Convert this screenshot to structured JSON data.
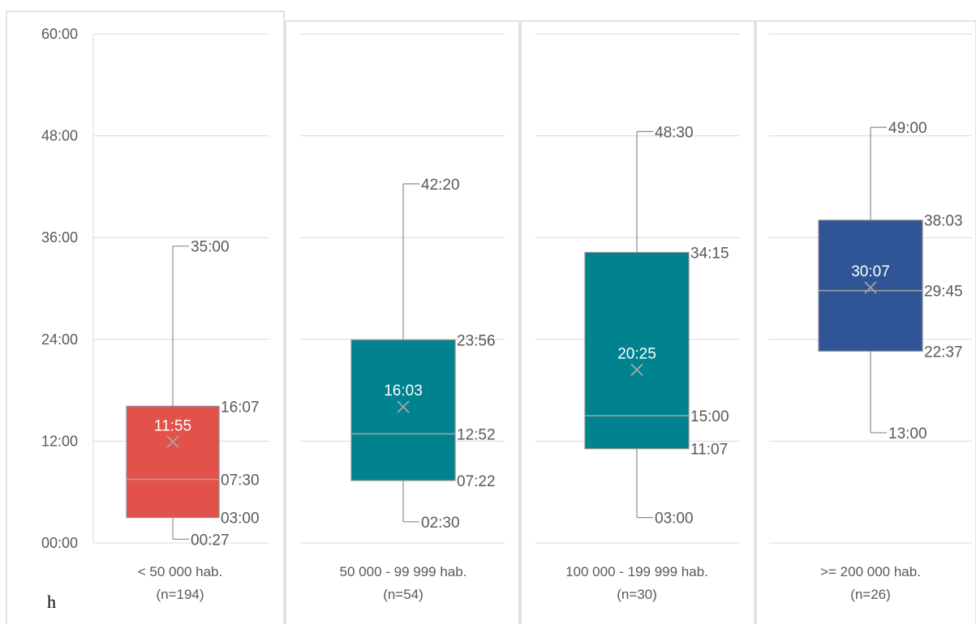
{
  "corner_label": "h",
  "chart_data": {
    "type": "boxplot",
    "y_axis": {
      "min_minutes": 0,
      "max_minutes": 60,
      "ticks": [
        {
          "value": 0,
          "label": "00:00"
        },
        {
          "value": 12,
          "label": "12:00"
        },
        {
          "value": 24,
          "label": "24:00"
        },
        {
          "value": 36,
          "label": "36:00"
        },
        {
          "value": 48,
          "label": "48:00"
        },
        {
          "value": 60,
          "label": "60:00"
        }
      ]
    },
    "grid": true,
    "panels": [
      {
        "category": "< 50 000 hab.",
        "n_label": "(n=194)",
        "color": "#E2514A",
        "min": 0.45,
        "q1": 3.0,
        "median": 7.5,
        "q3": 16.1167,
        "max": 35.0,
        "mean": 11.9167,
        "labels": {
          "min": "00:27",
          "q1": "03:00",
          "median": "07:30",
          "q3": "16:07",
          "max": "35:00",
          "mean": "11:55"
        }
      },
      {
        "category": "50 000 - 99 999 hab.",
        "n_label": "(n=54)",
        "color": "#00838F",
        "min": 2.5,
        "q1": 7.3667,
        "median": 12.8667,
        "q3": 23.9333,
        "max": 42.3333,
        "mean": 16.05,
        "labels": {
          "min": "02:30",
          "q1": "07:22",
          "median": "12:52",
          "q3": "23:56",
          "max": "42:20",
          "mean": "16:03"
        }
      },
      {
        "category": "100 000 - 199 999 hab.",
        "n_label": "(n=30)",
        "color": "#00838F",
        "min": 3.0,
        "q1": 11.1167,
        "median": 15.0,
        "q3": 34.25,
        "max": 48.5,
        "mean": 20.4167,
        "labels": {
          "min": "03:00",
          "q1": "11:07",
          "median": "15:00",
          "q3": "34:15",
          "max": "48:30",
          "mean": "20:25"
        }
      },
      {
        "category": ">= 200 000 hab.",
        "n_label": "(n=26)",
        "color": "#2F5597",
        "min": 13.0,
        "q1": 22.6167,
        "median": 29.75,
        "q3": 38.05,
        "max": 49.0,
        "mean": 30.1167,
        "labels": {
          "min": "13:00",
          "q1": "22:37",
          "median": "29:45",
          "q3": "38:03",
          "max": "49:00",
          "mean": "30:07"
        }
      }
    ]
  }
}
